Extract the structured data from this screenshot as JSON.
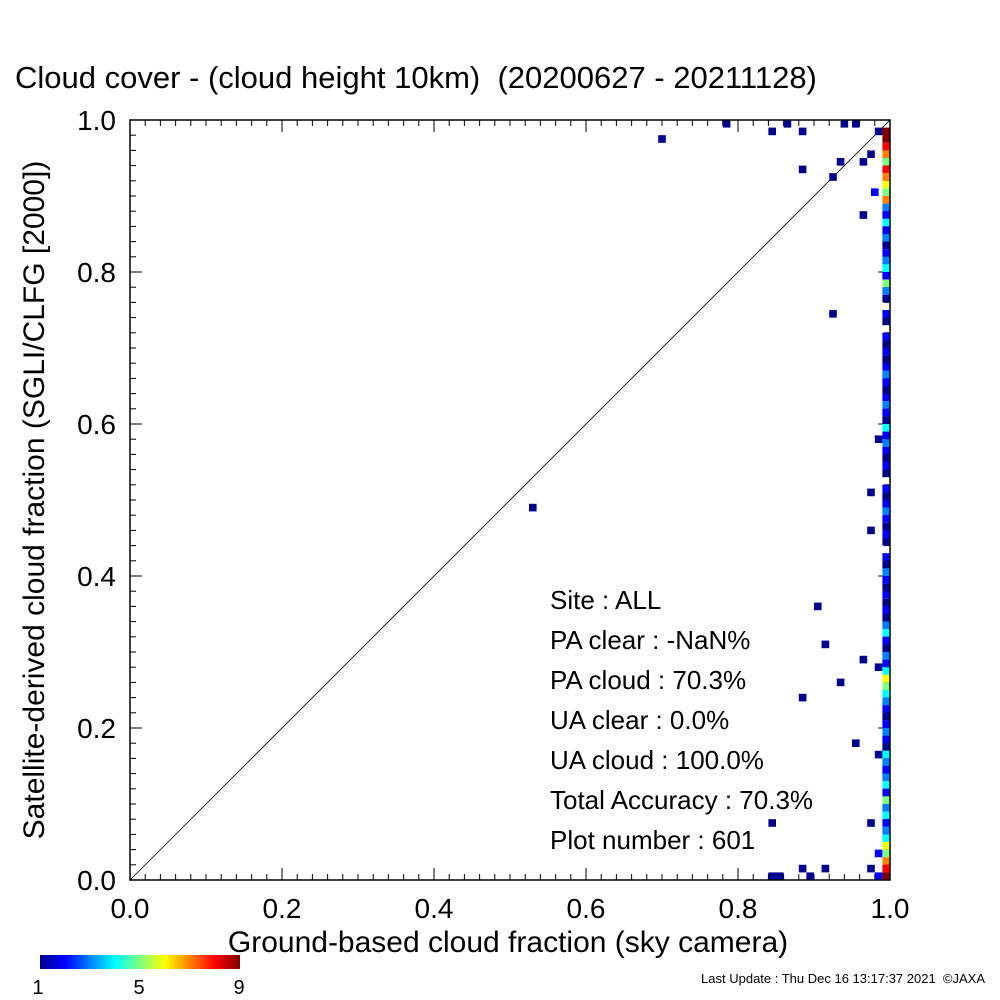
{
  "chart_data": {
    "type": "scatter",
    "title": "Cloud cover - (cloud height 10km)  (20200627 - 20211128)",
    "xlabel": "Ground-based cloud fraction (sky camera)",
    "ylabel": "Satellite-derived cloud fraction (SGLI/CLFG [2000])",
    "xlim": [
      0.0,
      1.0
    ],
    "ylim": [
      0.0,
      1.0
    ],
    "xticks": [
      "0.0",
      "0.2",
      "0.4",
      "0.6",
      "0.8",
      "1.0"
    ],
    "yticks": [
      "0.0",
      "0.2",
      "0.4",
      "0.6",
      "0.8",
      "1.0"
    ],
    "grid": false,
    "reference_line": "y = x",
    "colorbar": {
      "min": 1,
      "max": 9,
      "ticks": [
        "1",
        "5",
        "9"
      ]
    },
    "points": [
      {
        "x": 0.53,
        "y": 0.49,
        "count": 1
      },
      {
        "x": 0.7,
        "y": 0.975,
        "count": 1
      },
      {
        "x": 0.785,
        "y": 0.995,
        "count": 1
      },
      {
        "x": 0.845,
        "y": 0.985,
        "count": 1
      },
      {
        "x": 0.865,
        "y": 0.995,
        "count": 1
      },
      {
        "x": 0.885,
        "y": 0.985,
        "count": 1
      },
      {
        "x": 0.885,
        "y": 0.935,
        "count": 1
      },
      {
        "x": 0.925,
        "y": 0.925,
        "count": 1
      },
      {
        "x": 0.935,
        "y": 0.945,
        "count": 1
      },
      {
        "x": 0.94,
        "y": 0.995,
        "count": 1
      },
      {
        "x": 0.955,
        "y": 0.995,
        "count": 1
      },
      {
        "x": 0.965,
        "y": 0.945,
        "count": 1
      },
      {
        "x": 0.975,
        "y": 0.955,
        "count": 1
      },
      {
        "x": 0.965,
        "y": 0.875,
        "count": 1
      },
      {
        "x": 0.98,
        "y": 0.905,
        "count": 2
      },
      {
        "x": 0.985,
        "y": 0.985,
        "count": 1
      },
      {
        "x": 0.925,
        "y": 0.745,
        "count": 1
      },
      {
        "x": 0.985,
        "y": 0.58,
        "count": 1
      },
      {
        "x": 0.975,
        "y": 0.51,
        "count": 1
      },
      {
        "x": 0.975,
        "y": 0.46,
        "count": 1
      },
      {
        "x": 0.905,
        "y": 0.36,
        "count": 1
      },
      {
        "x": 0.915,
        "y": 0.31,
        "count": 1
      },
      {
        "x": 0.965,
        "y": 0.29,
        "count": 1
      },
      {
        "x": 0.985,
        "y": 0.28,
        "count": 1
      },
      {
        "x": 0.935,
        "y": 0.26,
        "count": 1
      },
      {
        "x": 0.885,
        "y": 0.24,
        "count": 1
      },
      {
        "x": 0.955,
        "y": 0.18,
        "count": 1
      },
      {
        "x": 0.985,
        "y": 0.165,
        "count": 1
      },
      {
        "x": 0.845,
        "y": 0.075,
        "count": 1
      },
      {
        "x": 0.975,
        "y": 0.075,
        "count": 1
      },
      {
        "x": 0.885,
        "y": 0.015,
        "count": 1
      },
      {
        "x": 0.915,
        "y": 0.015,
        "count": 1
      },
      {
        "x": 0.985,
        "y": 0.035,
        "count": 2
      },
      {
        "x": 0.975,
        "y": 0.015,
        "count": 1
      },
      {
        "x": 0.845,
        "y": 0.005,
        "count": 1
      },
      {
        "x": 0.855,
        "y": 0.005,
        "count": 1
      },
      {
        "x": 0.895,
        "y": 0.005,
        "count": 1
      },
      {
        "x": 0.985,
        "y": 0.005,
        "count": 2
      },
      {
        "x": 0.995,
        "y": 0.985,
        "count": 9
      },
      {
        "x": 0.995,
        "y": 0.975,
        "count": 9
      },
      {
        "x": 0.995,
        "y": 0.965,
        "count": 8
      },
      {
        "x": 0.995,
        "y": 0.955,
        "count": 7
      },
      {
        "x": 0.995,
        "y": 0.945,
        "count": 5
      },
      {
        "x": 0.995,
        "y": 0.935,
        "count": 8
      },
      {
        "x": 0.995,
        "y": 0.925,
        "count": 7
      },
      {
        "x": 0.995,
        "y": 0.915,
        "count": 6
      },
      {
        "x": 0.995,
        "y": 0.905,
        "count": 5
      },
      {
        "x": 0.995,
        "y": 0.895,
        "count": 7
      },
      {
        "x": 0.995,
        "y": 0.885,
        "count": 3
      },
      {
        "x": 0.995,
        "y": 0.875,
        "count": 2
      },
      {
        "x": 0.995,
        "y": 0.865,
        "count": 4
      },
      {
        "x": 0.995,
        "y": 0.855,
        "count": 2
      },
      {
        "x": 0.995,
        "y": 0.845,
        "count": 3
      },
      {
        "x": 0.995,
        "y": 0.835,
        "count": 1
      },
      {
        "x": 0.995,
        "y": 0.825,
        "count": 2
      },
      {
        "x": 0.995,
        "y": 0.815,
        "count": 3
      },
      {
        "x": 0.995,
        "y": 0.805,
        "count": 4
      },
      {
        "x": 0.995,
        "y": 0.795,
        "count": 2
      },
      {
        "x": 0.995,
        "y": 0.785,
        "count": 5
      },
      {
        "x": 0.995,
        "y": 0.775,
        "count": 3
      },
      {
        "x": 0.995,
        "y": 0.765,
        "count": 1
      },
      {
        "x": 0.995,
        "y": 0.745,
        "count": 2
      },
      {
        "x": 0.995,
        "y": 0.735,
        "count": 1
      },
      {
        "x": 0.995,
        "y": 0.715,
        "count": 2
      },
      {
        "x": 0.995,
        "y": 0.705,
        "count": 1
      },
      {
        "x": 0.995,
        "y": 0.695,
        "count": 2
      },
      {
        "x": 0.995,
        "y": 0.685,
        "count": 1
      },
      {
        "x": 0.995,
        "y": 0.675,
        "count": 2
      },
      {
        "x": 0.995,
        "y": 0.665,
        "count": 3
      },
      {
        "x": 0.995,
        "y": 0.655,
        "count": 2
      },
      {
        "x": 0.995,
        "y": 0.645,
        "count": 1
      },
      {
        "x": 0.995,
        "y": 0.635,
        "count": 2
      },
      {
        "x": 0.995,
        "y": 0.625,
        "count": 3
      },
      {
        "x": 0.995,
        "y": 0.615,
        "count": 2
      },
      {
        "x": 0.995,
        "y": 0.605,
        "count": 1
      },
      {
        "x": 0.995,
        "y": 0.595,
        "count": 4
      },
      {
        "x": 0.995,
        "y": 0.585,
        "count": 2
      },
      {
        "x": 0.995,
        "y": 0.575,
        "count": 3
      },
      {
        "x": 0.995,
        "y": 0.565,
        "count": 2
      },
      {
        "x": 0.995,
        "y": 0.555,
        "count": 1
      },
      {
        "x": 0.995,
        "y": 0.545,
        "count": 2
      },
      {
        "x": 0.995,
        "y": 0.535,
        "count": 1
      },
      {
        "x": 0.995,
        "y": 0.515,
        "count": 2
      },
      {
        "x": 0.995,
        "y": 0.505,
        "count": 1
      },
      {
        "x": 0.995,
        "y": 0.495,
        "count": 2
      },
      {
        "x": 0.995,
        "y": 0.485,
        "count": 3
      },
      {
        "x": 0.995,
        "y": 0.475,
        "count": 2
      },
      {
        "x": 0.995,
        "y": 0.465,
        "count": 1
      },
      {
        "x": 0.995,
        "y": 0.455,
        "count": 2
      },
      {
        "x": 0.995,
        "y": 0.445,
        "count": 1
      },
      {
        "x": 0.995,
        "y": 0.425,
        "count": 2
      },
      {
        "x": 0.995,
        "y": 0.415,
        "count": 1
      },
      {
        "x": 0.995,
        "y": 0.405,
        "count": 3
      },
      {
        "x": 0.995,
        "y": 0.395,
        "count": 2
      },
      {
        "x": 0.995,
        "y": 0.385,
        "count": 1
      },
      {
        "x": 0.995,
        "y": 0.375,
        "count": 2
      },
      {
        "x": 0.995,
        "y": 0.365,
        "count": 1
      },
      {
        "x": 0.995,
        "y": 0.355,
        "count": 2
      },
      {
        "x": 0.995,
        "y": 0.345,
        "count": 1
      },
      {
        "x": 0.995,
        "y": 0.335,
        "count": 3
      },
      {
        "x": 0.995,
        "y": 0.325,
        "count": 4
      },
      {
        "x": 0.995,
        "y": 0.315,
        "count": 2
      },
      {
        "x": 0.995,
        "y": 0.305,
        "count": 1
      },
      {
        "x": 0.995,
        "y": 0.295,
        "count": 3
      },
      {
        "x": 0.995,
        "y": 0.285,
        "count": 2
      },
      {
        "x": 0.995,
        "y": 0.275,
        "count": 4
      },
      {
        "x": 0.995,
        "y": 0.265,
        "count": 6
      },
      {
        "x": 0.995,
        "y": 0.255,
        "count": 5
      },
      {
        "x": 0.995,
        "y": 0.245,
        "count": 4
      },
      {
        "x": 0.995,
        "y": 0.235,
        "count": 3
      },
      {
        "x": 0.995,
        "y": 0.225,
        "count": 2
      },
      {
        "x": 0.995,
        "y": 0.215,
        "count": 1
      },
      {
        "x": 0.995,
        "y": 0.205,
        "count": 2
      },
      {
        "x": 0.995,
        "y": 0.195,
        "count": 3
      },
      {
        "x": 0.995,
        "y": 0.185,
        "count": 2
      },
      {
        "x": 0.995,
        "y": 0.175,
        "count": 1
      },
      {
        "x": 0.995,
        "y": 0.165,
        "count": 4
      },
      {
        "x": 0.995,
        "y": 0.155,
        "count": 3
      },
      {
        "x": 0.995,
        "y": 0.145,
        "count": 2
      },
      {
        "x": 0.995,
        "y": 0.135,
        "count": 3
      },
      {
        "x": 0.995,
        "y": 0.125,
        "count": 4
      },
      {
        "x": 0.995,
        "y": 0.115,
        "count": 2
      },
      {
        "x": 0.995,
        "y": 0.105,
        "count": 5
      },
      {
        "x": 0.995,
        "y": 0.095,
        "count": 3
      },
      {
        "x": 0.995,
        "y": 0.085,
        "count": 4
      },
      {
        "x": 0.995,
        "y": 0.075,
        "count": 2
      },
      {
        "x": 0.995,
        "y": 0.065,
        "count": 3
      },
      {
        "x": 0.995,
        "y": 0.055,
        "count": 4
      },
      {
        "x": 0.995,
        "y": 0.045,
        "count": 6
      },
      {
        "x": 0.995,
        "y": 0.035,
        "count": 5
      },
      {
        "x": 0.995,
        "y": 0.025,
        "count": 7
      },
      {
        "x": 0.995,
        "y": 0.015,
        "count": 8
      },
      {
        "x": 0.995,
        "y": 0.005,
        "count": 9
      }
    ]
  },
  "stats": [
    "Site : ALL",
    "PA clear :  -NaN%",
    "PA cloud :  70.3%",
    "UA clear :   0.0%",
    "UA cloud : 100.0%",
    "Total Accuracy :  70.3%",
    "Plot number :       601"
  ],
  "footer": "Last Update : Thu Dec 16 13:17:37 2021  ©JAXA"
}
